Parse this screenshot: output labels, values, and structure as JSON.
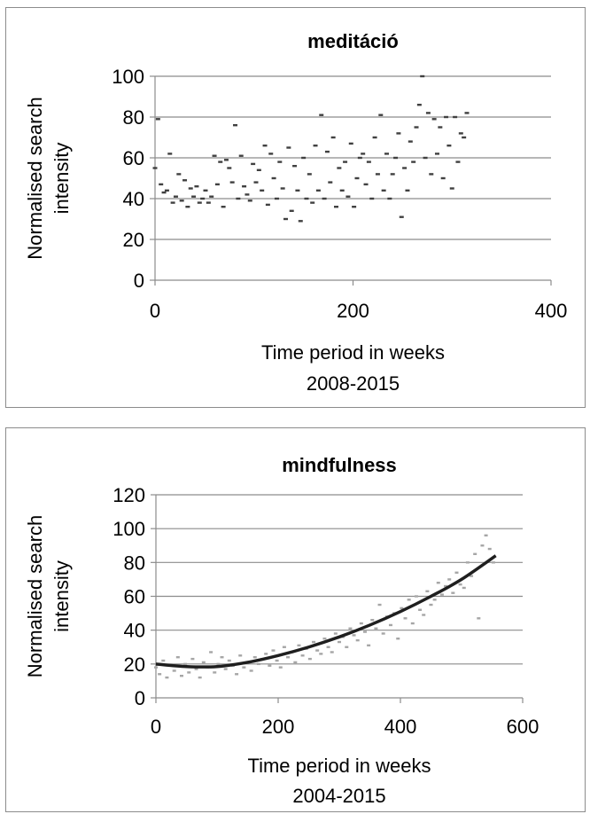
{
  "chart_data": [
    {
      "type": "scatter",
      "title": "meditáció",
      "xlabel": "Time period in weeks",
      "xlabel2": "2008-2015",
      "ylabel": "Normalised search intensity",
      "xlim": [
        0,
        400
      ],
      "ylim": [
        0,
        100
      ],
      "xticks": [
        0,
        200,
        400
      ],
      "yticks": [
        0,
        20,
        40,
        60,
        80,
        100
      ],
      "grid": "horizontal",
      "marker_color": "#404040",
      "series": [
        {
          "points_note": "x = week index (0-315), y = normalised search intensity",
          "x": [
            0,
            3,
            6,
            9,
            12,
            15,
            18,
            21,
            24,
            27,
            30,
            33,
            36,
            39,
            42,
            45,
            48,
            51,
            54,
            57,
            60,
            63,
            66,
            69,
            72,
            75,
            78,
            81,
            84,
            87,
            90,
            93,
            96,
            99,
            102,
            105,
            108,
            111,
            114,
            117,
            120,
            123,
            126,
            129,
            132,
            135,
            138,
            141,
            144,
            147,
            150,
            153,
            156,
            159,
            162,
            165,
            168,
            171,
            174,
            177,
            180,
            183,
            186,
            189,
            192,
            195,
            198,
            201,
            204,
            207,
            210,
            213,
            216,
            219,
            222,
            225,
            228,
            231,
            234,
            237,
            240,
            243,
            246,
            249,
            252,
            255,
            258,
            261,
            264,
            267,
            270,
            273,
            276,
            279,
            282,
            285,
            288,
            291,
            294,
            297,
            300,
            303,
            306,
            309,
            312,
            315
          ],
          "y": [
            55,
            79,
            47,
            43,
            44,
            62,
            38,
            41,
            52,
            39,
            49,
            36,
            45,
            41,
            46,
            38,
            40,
            44,
            38,
            41,
            61,
            47,
            58,
            36,
            59,
            55,
            48,
            76,
            40,
            61,
            46,
            42,
            39,
            57,
            48,
            54,
            44,
            66,
            37,
            62,
            50,
            40,
            58,
            45,
            30,
            65,
            34,
            56,
            44,
            29,
            60,
            40,
            52,
            38,
            66,
            44,
            81,
            40,
            63,
            48,
            70,
            36,
            55,
            44,
            58,
            41,
            67,
            36,
            50,
            60,
            62,
            47,
            58,
            40,
            70,
            52,
            81,
            44,
            62,
            40,
            52,
            60,
            72,
            31,
            55,
            44,
            68,
            58,
            75,
            86,
            100,
            60,
            82,
            52,
            79,
            62,
            75,
            50,
            80,
            66,
            45,
            80,
            58,
            72,
            70,
            82
          ]
        }
      ]
    },
    {
      "type": "scatter",
      "title": "mindfulness",
      "xlabel": "Time period in weeks",
      "xlabel2": "2004-2015",
      "ylabel": "Normalised search intensity",
      "xlim": [
        0,
        600
      ],
      "ylim": [
        0,
        120
      ],
      "xticks": [
        0,
        200,
        400,
        600
      ],
      "yticks": [
        0,
        20,
        40,
        60,
        80,
        100,
        120
      ],
      "grid": "horizontal",
      "marker_color": "#a6a6a6",
      "trend_color": "#1f1f1f",
      "trendline": {
        "type": "polynomial",
        "x": [
          0,
          50,
          100,
          150,
          200,
          250,
          300,
          350,
          400,
          450,
          500,
          556
        ],
        "y": [
          20,
          18.5,
          18.5,
          21,
          25,
          30,
          36,
          43,
          51,
          60,
          70,
          84
        ]
      },
      "series": [
        {
          "points_note": "x = week index (0-556), y = normalised search intensity",
          "x": [
            0,
            6,
            12,
            18,
            24,
            30,
            36,
            42,
            48,
            54,
            60,
            66,
            72,
            78,
            84,
            90,
            96,
            102,
            108,
            114,
            120,
            126,
            132,
            138,
            144,
            150,
            156,
            162,
            168,
            174,
            180,
            186,
            192,
            198,
            204,
            210,
            216,
            222,
            228,
            234,
            240,
            246,
            252,
            258,
            264,
            270,
            276,
            282,
            288,
            294,
            300,
            306,
            312,
            318,
            324,
            330,
            336,
            342,
            348,
            354,
            360,
            366,
            372,
            378,
            384,
            390,
            396,
            402,
            408,
            414,
            420,
            426,
            432,
            438,
            444,
            450,
            456,
            462,
            468,
            474,
            480,
            486,
            492,
            498,
            504,
            510,
            516,
            522,
            528,
            534,
            540,
            546,
            552
          ],
          "y": [
            18,
            14,
            22,
            12,
            19,
            16,
            24,
            13,
            20,
            15,
            23,
            17,
            12,
            21,
            18,
            27,
            15,
            20,
            24,
            17,
            22,
            19,
            14,
            25,
            18,
            21,
            16,
            24,
            20,
            23,
            26,
            19,
            28,
            22,
            18,
            30,
            24,
            27,
            21,
            31,
            25,
            29,
            23,
            33,
            28,
            26,
            35,
            30,
            27,
            38,
            33,
            36,
            30,
            41,
            37,
            34,
            44,
            39,
            31,
            46,
            41,
            55,
            38,
            48,
            43,
            50,
            35,
            53,
            47,
            58,
            44,
            60,
            52,
            49,
            63,
            55,
            58,
            68,
            61,
            66,
            70,
            62,
            74,
            67,
            65,
            80,
            72,
            85,
            47,
            90,
            96,
            88,
            80
          ]
        }
      ]
    }
  ]
}
